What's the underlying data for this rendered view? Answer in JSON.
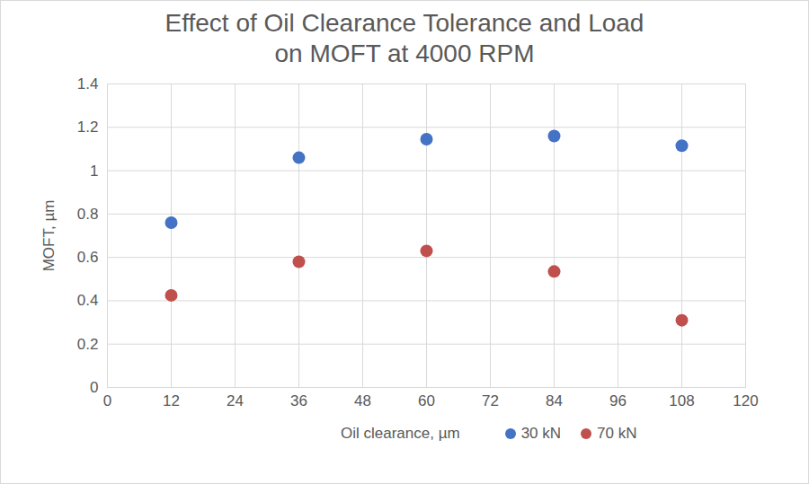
{
  "chart_data": {
    "type": "scatter",
    "title": [
      "Effect of Oil Clearance Tolerance and Load",
      "on MOFT at 4000 RPM"
    ],
    "x_label": "Oil clearance, µm",
    "y_label": "MOFT, µm",
    "x": [
      12,
      36,
      60,
      84,
      108
    ],
    "series": [
      {
        "name": "30 kN",
        "color": "#4472c4",
        "marker": "circle",
        "values": [
          0.76,
          1.06,
          1.145,
          1.16,
          1.115
        ]
      },
      {
        "name": "70 kN",
        "color": "#c0504d",
        "marker": "circle",
        "values": [
          0.425,
          0.58,
          0.63,
          0.535,
          0.31
        ]
      }
    ],
    "xlim": [
      0,
      120
    ],
    "xticks": [
      0,
      12,
      24,
      36,
      48,
      60,
      72,
      84,
      96,
      108,
      120
    ],
    "ylim": [
      0,
      1.4
    ],
    "yticks": [
      0,
      0.2,
      0.4,
      0.6,
      0.8,
      1,
      1.2,
      1.4
    ],
    "grid": true,
    "legend": "bottom"
  }
}
